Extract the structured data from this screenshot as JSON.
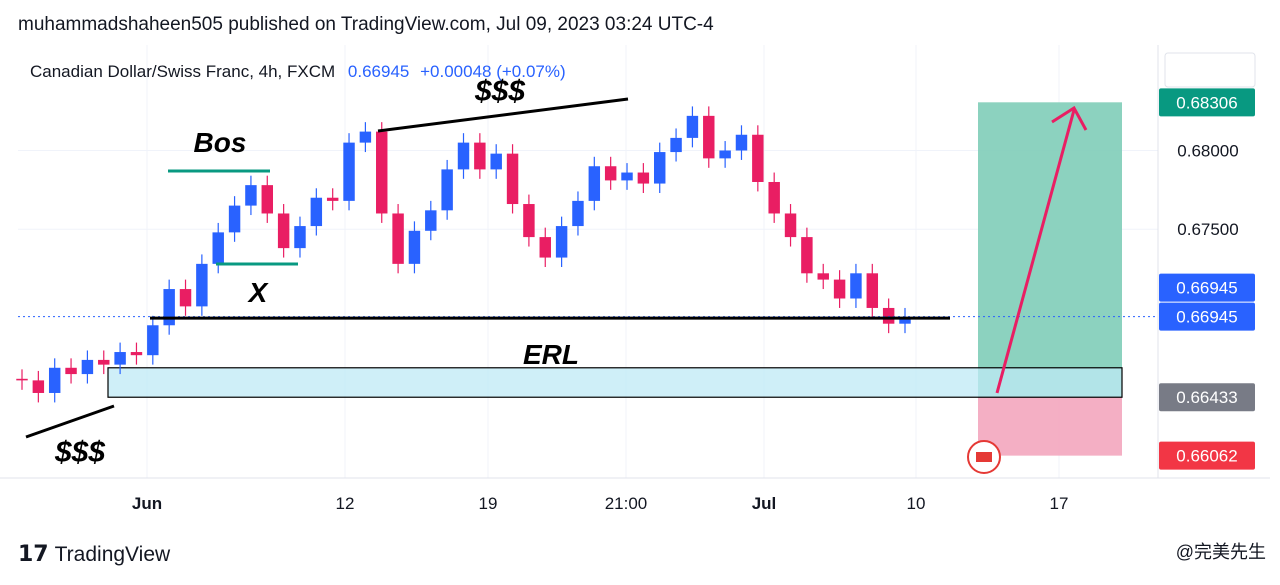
{
  "header": {
    "publisher_line": "muhammadshaheen505 published on TradingView.com, Jul 09, 2023 03:24 UTC-4"
  },
  "symbol": {
    "name": "Canadian Dollar/Swiss Franc, 4h, FXCM",
    "last": "0.66945",
    "change": "+0.00048 (+0.07%)"
  },
  "footer": {
    "logo_mark": "17",
    "brand": "TradingView",
    "watermark": "@完美先生"
  },
  "colors": {
    "up": "#2962ff",
    "down": "#e91e63",
    "accent_blue": "#2962ff",
    "profit_zone": "#7fcdb8",
    "loss_zone": "#f3a6be",
    "erl_zone": "#bfeaf5"
  },
  "chart_data": {
    "type": "candlestick",
    "timeframe": "4h",
    "x_tick_labels": [
      "Jun",
      "12",
      "19",
      "21:00",
      "Jul",
      "10",
      "17"
    ],
    "ylim": [
      0.6592,
      0.6867
    ],
    "y_tick_labels": [
      {
        "value": 0.68,
        "label": "0.68000"
      },
      {
        "value": 0.675,
        "label": "0.67500"
      }
    ],
    "price_badges": [
      {
        "value": 0.68306,
        "label": "0.68306",
        "color": "#089981"
      },
      {
        "value": 0.66945,
        "label": "0.66945",
        "color": "#2962ff"
      },
      {
        "value": 0.66945,
        "label": "0.66945",
        "color": "#2962ff"
      },
      {
        "value": 0.66433,
        "label": "0.66433",
        "color": "#787b86"
      },
      {
        "value": 0.66062,
        "label": "0.66062",
        "color": "#f23645"
      }
    ],
    "close_path": [
      [
        0.6654,
        0.6655
      ],
      [
        0.6646,
        0.6654
      ],
      [
        0.6662,
        0.6646
      ],
      [
        0.6658,
        0.6662
      ],
      [
        0.6667,
        0.6658
      ],
      [
        0.6664,
        0.6667
      ],
      [
        0.6672,
        0.6664
      ],
      [
        0.667,
        0.6672
      ],
      [
        0.6689,
        0.667
      ],
      [
        0.6712,
        0.6689
      ],
      [
        0.6701,
        0.6712
      ],
      [
        0.6728,
        0.6701
      ],
      [
        0.6748,
        0.6728
      ],
      [
        0.6765,
        0.6748
      ],
      [
        0.6778,
        0.6765
      ],
      [
        0.676,
        0.6778
      ],
      [
        0.6738,
        0.676
      ],
      [
        0.6752,
        0.6738
      ],
      [
        0.677,
        0.6752
      ],
      [
        0.6768,
        0.677
      ],
      [
        0.6805,
        0.6768
      ],
      [
        0.6812,
        0.6805
      ],
      [
        0.676,
        0.6812
      ],
      [
        0.6728,
        0.676
      ],
      [
        0.6749,
        0.6728
      ],
      [
        0.6762,
        0.6749
      ],
      [
        0.6788,
        0.6762
      ],
      [
        0.6805,
        0.6788
      ],
      [
        0.6788,
        0.6805
      ],
      [
        0.6798,
        0.6788
      ],
      [
        0.6766,
        0.6798
      ],
      [
        0.6745,
        0.6766
      ],
      [
        0.6732,
        0.6745
      ],
      [
        0.6752,
        0.6732
      ],
      [
        0.6768,
        0.6752
      ],
      [
        0.679,
        0.6768
      ],
      [
        0.6781,
        0.679
      ],
      [
        0.6786,
        0.6781
      ],
      [
        0.6779,
        0.6786
      ],
      [
        0.6799,
        0.6779
      ],
      [
        0.6808,
        0.6799
      ],
      [
        0.6822,
        0.6808
      ],
      [
        0.6795,
        0.6822
      ],
      [
        0.68,
        0.6795
      ],
      [
        0.681,
        0.68
      ],
      [
        0.678,
        0.681
      ],
      [
        0.676,
        0.678
      ],
      [
        0.6745,
        0.676
      ],
      [
        0.6722,
        0.6745
      ],
      [
        0.6718,
        0.6722
      ],
      [
        0.6706,
        0.6718
      ],
      [
        0.6722,
        0.6706
      ],
      [
        0.67,
        0.6722
      ],
      [
        0.669,
        0.67
      ],
      [
        0.6694,
        0.669
      ]
    ],
    "annotations": {
      "labels": [
        "$$$",
        "Bos",
        "X",
        "ERL",
        "$$$"
      ],
      "erl_zone": [
        0.66433,
        0.6662
      ],
      "erl_line": 0.66935,
      "position_long": {
        "target": 0.68306,
        "entry": 0.66433,
        "stop": 0.66062
      }
    }
  }
}
